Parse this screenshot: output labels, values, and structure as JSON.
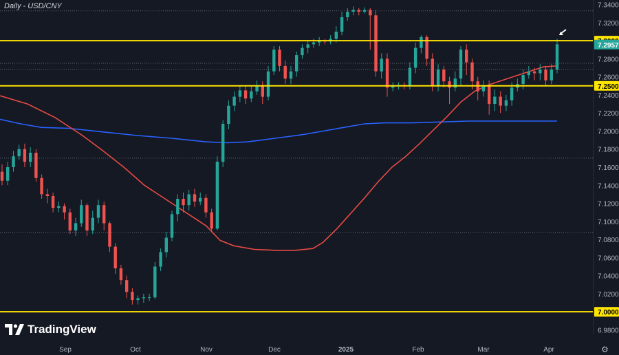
{
  "title": "Daily - USD/CNY",
  "brand": "TradingView",
  "colors": {
    "background": "#151924",
    "grid": "#3a3f4c",
    "axis_text": "#b2b5be",
    "bull": "#26a69a",
    "bear": "#ef5350",
    "ma_fast": "#e84a43",
    "ma_slow": "#2962ff",
    "level": "#ffe600",
    "price_tag": "#26a69a"
  },
  "chart_data": {
    "type": "candlestick",
    "title": "Daily - USD/CNY",
    "x_tick_labels": [
      "Sep",
      "Oct",
      "Nov",
      "Dec",
      "2025",
      "Feb",
      "Mar",
      "Apr"
    ],
    "y_tick_labels": [
      "7.3400",
      "7.3200",
      "7.3000",
      "7.2800",
      "7.2600",
      "7.2400",
      "7.2200",
      "7.2000",
      "7.1800",
      "7.1600",
      "7.1400",
      "7.1200",
      "7.1000",
      "7.0800",
      "7.0600",
      "7.0400",
      "7.0200",
      "7.0000",
      "6.9800"
    ],
    "ylim": [
      6.975,
      7.345
    ],
    "horizontal_levels": [
      {
        "value": 7.3,
        "label": "7.3000"
      },
      {
        "value": 7.25,
        "label": "7.2500"
      },
      {
        "value": 7.0,
        "label": "7.0000"
      }
    ],
    "last_price": {
      "value": 7.2957,
      "label": "7.2957"
    },
    "dotted_levels": [
      7.333,
      7.275,
      7.268,
      7.17,
      7.088
    ],
    "moving_average_fast": [
      [
        0,
        7.239
      ],
      [
        40,
        7.23
      ],
      [
        80,
        7.215
      ],
      [
        120,
        7.195
      ],
      [
        150,
        7.178
      ],
      [
        180,
        7.16
      ],
      [
        210,
        7.14
      ],
      [
        240,
        7.125
      ],
      [
        270,
        7.11
      ],
      [
        300,
        7.095
      ],
      [
        320,
        7.079
      ],
      [
        340,
        7.073
      ],
      [
        370,
        7.069
      ],
      [
        400,
        7.068
      ],
      [
        430,
        7.068
      ],
      [
        455,
        7.07
      ],
      [
        470,
        7.077
      ],
      [
        490,
        7.092
      ],
      [
        510,
        7.109
      ],
      [
        530,
        7.126
      ],
      [
        550,
        7.144
      ],
      [
        570,
        7.16
      ],
      [
        590,
        7.172
      ],
      [
        610,
        7.186
      ],
      [
        630,
        7.201
      ],
      [
        650,
        7.216
      ],
      [
        670,
        7.232
      ],
      [
        690,
        7.244
      ],
      [
        710,
        7.251
      ],
      [
        730,
        7.256
      ],
      [
        750,
        7.261
      ],
      [
        770,
        7.266
      ],
      [
        790,
        7.271
      ],
      [
        808,
        7.272
      ]
    ],
    "moving_average_slow": [
      [
        0,
        7.213
      ],
      [
        30,
        7.208
      ],
      [
        60,
        7.204
      ],
      [
        100,
        7.203
      ],
      [
        150,
        7.199
      ],
      [
        200,
        7.195
      ],
      [
        250,
        7.192
      ],
      [
        300,
        7.188
      ],
      [
        330,
        7.187
      ],
      [
        360,
        7.188
      ],
      [
        400,
        7.192
      ],
      [
        440,
        7.196
      ],
      [
        470,
        7.2
      ],
      [
        500,
        7.204
      ],
      [
        530,
        7.208
      ],
      [
        560,
        7.209
      ],
      [
        600,
        7.209
      ],
      [
        640,
        7.21
      ],
      [
        680,
        7.211
      ],
      [
        720,
        7.211
      ],
      [
        770,
        7.211
      ],
      [
        810,
        7.211
      ]
    ],
    "candles": [
      [
        7.155,
        7.145,
        7.163,
        7.14
      ],
      [
        7.145,
        7.16,
        7.166,
        7.14
      ],
      [
        7.16,
        7.172,
        7.178,
        7.155
      ],
      [
        7.172,
        7.18,
        7.185,
        7.168
      ],
      [
        7.18,
        7.166,
        7.186,
        7.16
      ],
      [
        7.166,
        7.176,
        7.182,
        7.16
      ],
      [
        7.176,
        7.148,
        7.18,
        7.144
      ],
      [
        7.148,
        7.13,
        7.152,
        7.125
      ],
      [
        7.13,
        7.128,
        7.136,
        7.12
      ],
      [
        7.128,
        7.115,
        7.132,
        7.11
      ],
      [
        7.115,
        7.117,
        7.122,
        7.11
      ],
      [
        7.117,
        7.11,
        7.12,
        7.102
      ],
      [
        7.11,
        7.09,
        7.114,
        7.086
      ],
      [
        7.09,
        7.098,
        7.104,
        7.084
      ],
      [
        7.098,
        7.118,
        7.124,
        7.094
      ],
      [
        7.118,
        7.09,
        7.12,
        7.084
      ],
      [
        7.09,
        7.104,
        7.112,
        7.086
      ],
      [
        7.104,
        7.118,
        7.124,
        7.098
      ],
      [
        7.118,
        7.098,
        7.122,
        7.09
      ],
      [
        7.098,
        7.072,
        7.1,
        7.066
      ],
      [
        7.072,
        7.048,
        7.076,
        7.042
      ],
      [
        7.048,
        7.035,
        7.052,
        7.03
      ],
      [
        7.035,
        7.022,
        7.04,
        7.015
      ],
      [
        7.022,
        7.013,
        7.026,
        7.008
      ],
      [
        7.013,
        7.015,
        7.018,
        7.008
      ],
      [
        7.015,
        7.016,
        7.02,
        7.01
      ],
      [
        7.016,
        7.016,
        7.02,
        7.012
      ],
      [
        7.016,
        7.05,
        7.055,
        7.014
      ],
      [
        7.05,
        7.066,
        7.07,
        7.045
      ],
      [
        7.066,
        7.082,
        7.088,
        7.06
      ],
      [
        7.082,
        7.108,
        7.112,
        7.078
      ],
      [
        7.108,
        7.125,
        7.13,
        7.1
      ],
      [
        7.125,
        7.118,
        7.132,
        7.11
      ],
      [
        7.118,
        7.13,
        7.135,
        7.112
      ],
      [
        7.13,
        7.122,
        7.136,
        7.116
      ],
      [
        7.122,
        7.126,
        7.132,
        7.118
      ],
      [
        7.126,
        7.11,
        7.13,
        7.104
      ],
      [
        7.11,
        7.092,
        7.114,
        7.088
      ],
      [
        7.092,
        7.166,
        7.172,
        7.09
      ],
      [
        7.166,
        7.208,
        7.212,
        7.16
      ],
      [
        7.208,
        7.228,
        7.234,
        7.202
      ],
      [
        7.228,
        7.238,
        7.244,
        7.222
      ],
      [
        7.238,
        7.245,
        7.25,
        7.232
      ],
      [
        7.245,
        7.236,
        7.25,
        7.23
      ],
      [
        7.236,
        7.244,
        7.25,
        7.232
      ],
      [
        7.244,
        7.25,
        7.256,
        7.24
      ],
      [
        7.25,
        7.238,
        7.255,
        7.23
      ],
      [
        7.238,
        7.266,
        7.272,
        7.234
      ],
      [
        7.266,
        7.29,
        7.294,
        7.262
      ],
      [
        7.29,
        7.272,
        7.294,
        7.266
      ],
      [
        7.272,
        7.258,
        7.278,
        7.252
      ],
      [
        7.258,
        7.266,
        7.272,
        7.252
      ],
      [
        7.266,
        7.284,
        7.288,
        7.26
      ],
      [
        7.284,
        7.292,
        7.296,
        7.28
      ],
      [
        7.292,
        7.296,
        7.3,
        7.286
      ],
      [
        7.296,
        7.298,
        7.302,
        7.292
      ],
      [
        7.298,
        7.3,
        7.304,
        7.294
      ],
      [
        7.3,
        7.299,
        7.302,
        7.296
      ],
      [
        7.299,
        7.302,
        7.306,
        7.296
      ],
      [
        7.302,
        7.31,
        7.316,
        7.298
      ],
      [
        7.31,
        7.326,
        7.332,
        7.306
      ],
      [
        7.326,
        7.332,
        7.336,
        7.322
      ],
      [
        7.332,
        7.334,
        7.338,
        7.328
      ],
      [
        7.334,
        7.332,
        7.336,
        7.328
      ],
      [
        7.332,
        7.334,
        7.337,
        7.33
      ],
      [
        7.334,
        7.328,
        7.336,
        7.29
      ],
      [
        7.328,
        7.266,
        7.334,
        7.26
      ],
      [
        7.266,
        7.28,
        7.286,
        7.258
      ],
      [
        7.28,
        7.248,
        7.286,
        7.238
      ],
      [
        7.248,
        7.25,
        7.254,
        7.244
      ],
      [
        7.25,
        7.251,
        7.254,
        7.246
      ],
      [
        7.251,
        7.25,
        7.254,
        7.246
      ],
      [
        7.25,
        7.27,
        7.276,
        7.246
      ],
      [
        7.27,
        7.292,
        7.298,
        7.264
      ],
      [
        7.292,
        7.304,
        7.306,
        7.286
      ],
      [
        7.304,
        7.28,
        7.306,
        7.272
      ],
      [
        7.28,
        7.25,
        7.286,
        7.244
      ],
      [
        7.25,
        7.268,
        7.274,
        7.244
      ],
      [
        7.268,
        7.255,
        7.272,
        7.248
      ],
      [
        7.255,
        7.248,
        7.26,
        7.23
      ],
      [
        7.248,
        7.258,
        7.266,
        7.244
      ],
      [
        7.258,
        7.29,
        7.294,
        7.25
      ],
      [
        7.29,
        7.276,
        7.296,
        7.262
      ],
      [
        7.276,
        7.255,
        7.28,
        7.246
      ],
      [
        7.255,
        7.244,
        7.26,
        7.234
      ],
      [
        7.244,
        7.25,
        7.256,
        7.238
      ],
      [
        7.25,
        7.23,
        7.256,
        7.218
      ],
      [
        7.23,
        7.238,
        7.246,
        7.222
      ],
      [
        7.238,
        7.228,
        7.244,
        7.22
      ],
      [
        7.228,
        7.234,
        7.24,
        7.222
      ],
      [
        7.234,
        7.248,
        7.254,
        7.228
      ],
      [
        7.248,
        7.252,
        7.258,
        7.244
      ],
      [
        7.252,
        7.262,
        7.268,
        7.246
      ],
      [
        7.262,
        7.266,
        7.272,
        7.258
      ],
      [
        7.266,
        7.264,
        7.27,
        7.256
      ],
      [
        7.264,
        7.268,
        7.274,
        7.256
      ],
      [
        7.268,
        7.256,
        7.272,
        7.25
      ],
      [
        7.256,
        7.268,
        7.274,
        7.252
      ],
      [
        7.268,
        7.296,
        7.302,
        7.264
      ]
    ]
  }
}
